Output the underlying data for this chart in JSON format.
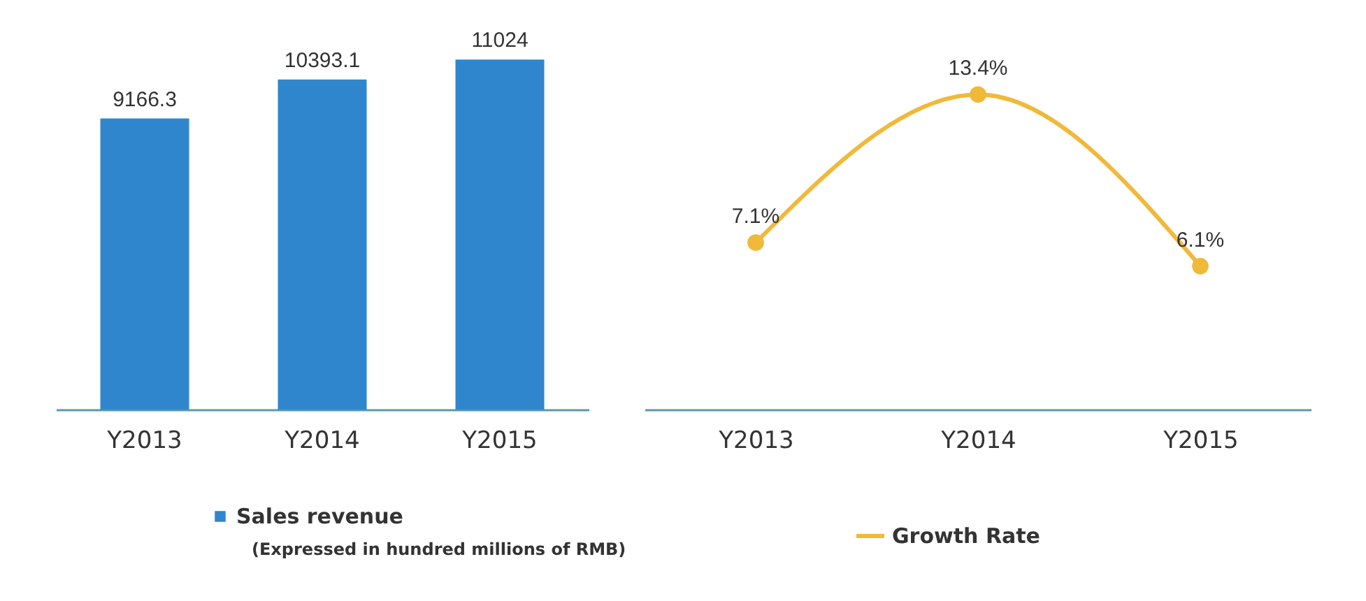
{
  "chart_data": [
    {
      "type": "bar",
      "categories": [
        "Y2013",
        "Y2014",
        "Y2015"
      ],
      "series": [
        {
          "name": "Sales revenue",
          "color": "#2f86cc",
          "values": [
            9166.3,
            10393.1,
            11024
          ]
        }
      ],
      "data_labels": true,
      "legend": "bottom",
      "annotations": [
        "(Expressed in hundred millions of RMB)"
      ]
    },
    {
      "type": "line",
      "categories": [
        "Y2013",
        "Y2014",
        "Y2015"
      ],
      "series": [
        {
          "name": "Growth Rate",
          "color": "#f0b93a",
          "values": [
            7.1,
            13.4,
            6.1
          ],
          "value_labels": [
            "7.1%",
            "13.4%",
            "6.1%"
          ]
        }
      ],
      "marker": "circle",
      "legend": "bottom"
    }
  ]
}
